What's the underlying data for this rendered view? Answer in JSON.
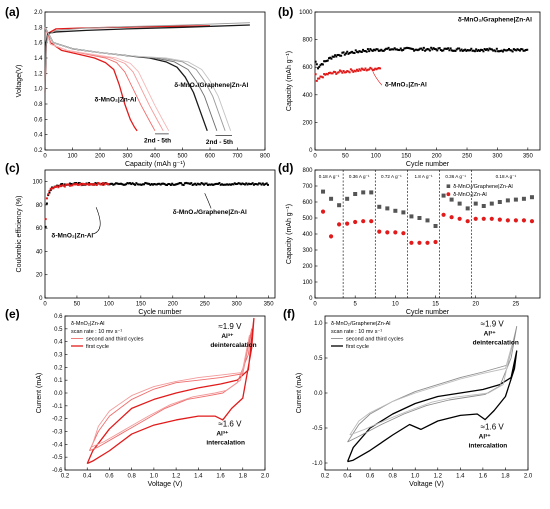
{
  "chart_data": [
    {
      "id": "a",
      "panel_label": "(a)",
      "type": "line",
      "xlabel": "Capacity (mAh g⁻¹)",
      "ylabel": "Voltage(V)",
      "xlim": [
        0,
        800
      ],
      "ylim": [
        0.2,
        2.0
      ],
      "xticks": [
        0,
        100,
        200,
        300,
        400,
        500,
        600,
        700,
        800
      ],
      "yticks": [
        0.2,
        0.4,
        0.6,
        0.8,
        1.0,
        1.2,
        1.4,
        1.6,
        1.8,
        2.0
      ],
      "series": [
        {
          "group": "MnO2",
          "role": "charge",
          "color": "#e11b1b",
          "x": [
            0,
            4,
            10,
            40,
            120,
            250,
            400,
            600
          ],
          "y": [
            0.95,
            1.55,
            1.72,
            1.78,
            1.79,
            1.8,
            1.81,
            1.82
          ]
        },
        {
          "group": "MnO2",
          "role": "discharge-1",
          "color": "#e11b1b",
          "x": [
            0,
            20,
            60,
            120,
            180,
            220,
            250,
            270,
            290,
            310,
            325,
            335
          ],
          "y": [
            1.8,
            1.6,
            1.5,
            1.45,
            1.4,
            1.34,
            1.25,
            1.05,
            0.8,
            0.6,
            0.5,
            0.45
          ]
        },
        {
          "group": "MnO2",
          "role": "discharge-2",
          "color": "#ef6d6d",
          "x": [
            0,
            20,
            80,
            150,
            220,
            260,
            290,
            320,
            350,
            380,
            400
          ],
          "y": [
            1.8,
            1.58,
            1.5,
            1.45,
            1.4,
            1.34,
            1.22,
            1.0,
            0.78,
            0.58,
            0.45
          ]
        },
        {
          "group": "MnO2",
          "role": "discharge-3",
          "color": "#f39a9a",
          "x": [
            0,
            20,
            80,
            160,
            240,
            290,
            320,
            350,
            380,
            410,
            430
          ],
          "y": [
            1.8,
            1.58,
            1.5,
            1.45,
            1.4,
            1.33,
            1.22,
            1.0,
            0.78,
            0.58,
            0.45
          ]
        },
        {
          "group": "MnO2",
          "role": "discharge-4",
          "color": "#f6b8b8",
          "x": [
            0,
            20,
            80,
            170,
            260,
            310,
            340,
            370,
            400,
            430,
            450
          ],
          "y": [
            1.8,
            1.58,
            1.5,
            1.45,
            1.4,
            1.33,
            1.22,
            1.0,
            0.78,
            0.58,
            0.45
          ]
        },
        {
          "group": "MnO2/Graphene",
          "role": "charge",
          "color": "#1a1a1a",
          "x": [
            0,
            4,
            10,
            40,
            150,
            300,
            500,
            745
          ],
          "y": [
            0.95,
            1.6,
            1.72,
            1.74,
            1.76,
            1.78,
            1.8,
            1.83
          ]
        },
        {
          "group": "MnO2/Graphene",
          "role": "charge-gray",
          "color": "#9a9a9a",
          "x": [
            0,
            4,
            10,
            40,
            150,
            300,
            500,
            745
          ],
          "y": [
            0.95,
            1.55,
            1.7,
            1.76,
            1.79,
            1.81,
            1.83,
            1.86
          ]
        },
        {
          "group": "MnO2/Graphene",
          "role": "discharge-1",
          "color": "#1a1a1a",
          "x": [
            0,
            30,
            100,
            200,
            300,
            380,
            440,
            480,
            510,
            540,
            560,
            580,
            590
          ],
          "y": [
            1.8,
            1.6,
            1.52,
            1.47,
            1.43,
            1.4,
            1.35,
            1.28,
            1.15,
            0.95,
            0.75,
            0.55,
            0.45
          ]
        },
        {
          "group": "MnO2/Graphene",
          "role": "discharge-2",
          "color": "#6f6f6f",
          "x": [
            0,
            30,
            100,
            200,
            300,
            400,
            470,
            520,
            550,
            580,
            600,
            615,
            625
          ],
          "y": [
            1.8,
            1.6,
            1.52,
            1.47,
            1.43,
            1.4,
            1.35,
            1.25,
            1.1,
            0.9,
            0.7,
            0.55,
            0.45
          ]
        },
        {
          "group": "MnO2/Graphene",
          "role": "discharge-3",
          "color": "#9a9a9a",
          "x": [
            0,
            30,
            100,
            200,
            300,
            420,
            500,
            550,
            580,
            610,
            630,
            645,
            655
          ],
          "y": [
            1.8,
            1.6,
            1.52,
            1.47,
            1.43,
            1.4,
            1.35,
            1.25,
            1.1,
            0.9,
            0.7,
            0.55,
            0.45
          ]
        },
        {
          "group": "MnO2/Graphene",
          "role": "discharge-4",
          "color": "#c4c4c4",
          "x": [
            0,
            30,
            100,
            200,
            300,
            440,
            520,
            570,
            600,
            630,
            650,
            665,
            675
          ],
          "y": [
            1.8,
            1.6,
            1.52,
            1.47,
            1.43,
            1.4,
            1.35,
            1.25,
            1.1,
            0.9,
            0.7,
            0.55,
            0.45
          ]
        }
      ],
      "annotations": [
        "δ-MnO₂/Graphene|Zn-Al",
        "δ-MnO₂|Zn-Al",
        "2nd - 5th",
        "2nd - 5th"
      ]
    },
    {
      "id": "b",
      "panel_label": "(b)",
      "type": "scatter",
      "xlabel": "Cycle number",
      "ylabel": "Capacity (mAh g⁻¹)",
      "xlim": [
        0,
        370
      ],
      "ylim": [
        0,
        1000
      ],
      "xticks": [
        0,
        50,
        100,
        150,
        200,
        250,
        300,
        350
      ],
      "yticks": [
        0,
        200,
        400,
        600,
        800,
        1000
      ],
      "series": [
        {
          "name": "δ-MnO₂/Graphene|Zn-Al",
          "color": "#000000",
          "trend_x": [
            1,
            5,
            10,
            20,
            30,
            50,
            80,
            120,
            200,
            300,
            350
          ],
          "trend_y": [
            640,
            600,
            620,
            650,
            680,
            700,
            720,
            730,
            730,
            725,
            720
          ]
        },
        {
          "name": "δ-MnO₂|Zn-Al",
          "color": "#e11b1b",
          "trend_x": [
            1,
            3,
            6,
            10,
            20,
            40,
            60,
            80,
            100,
            107
          ],
          "trend_y": [
            540,
            500,
            510,
            530,
            550,
            565,
            575,
            582,
            590,
            595
          ]
        }
      ]
    },
    {
      "id": "c",
      "panel_label": "(c)",
      "type": "scatter",
      "xlabel": "Cycle number",
      "ylabel": "Coulombic efficiency (%)",
      "xlim": [
        0,
        360
      ],
      "ylim": [
        0,
        110
      ],
      "xticks": [
        0,
        50,
        100,
        150,
        200,
        250,
        300,
        350
      ],
      "yticks": [
        0,
        20,
        40,
        60,
        80,
        100
      ],
      "series": [
        {
          "name": "δ-MnO₂/Graphene|Zn-Al",
          "color": "#000000",
          "trend_x": [
            1,
            2,
            3,
            5,
            8,
            12,
            20,
            40,
            80,
            150,
            250,
            350
          ],
          "trend_y": [
            62,
            75,
            82,
            88,
            92,
            95,
            97,
            98,
            98,
            98,
            98,
            98
          ]
        },
        {
          "name": "δ-MnO₂|Zn-Al",
          "color": "#e11b1b",
          "trend_x": [
            1,
            2,
            3,
            5,
            8,
            12,
            20,
            40,
            70,
            100
          ],
          "trend_y": [
            68,
            80,
            86,
            90,
            93,
            95,
            96,
            97,
            98,
            98
          ]
        }
      ]
    },
    {
      "id": "d",
      "panel_label": "(d)",
      "type": "scatter",
      "xlabel": "Cycle number",
      "ylabel": "Capacity (mAh g⁻¹)",
      "xlim": [
        0,
        28
      ],
      "ylim": [
        0,
        800
      ],
      "xticks": [
        0,
        5,
        10,
        15,
        20,
        25
      ],
      "yticks": [
        0,
        100,
        200,
        300,
        400,
        500,
        600,
        700,
        800
      ],
      "rate_labels": [
        "0.18 A g⁻¹",
        "0.36 A g⁻¹",
        "0.72 A g⁻¹",
        "1.8 A g⁻¹",
        "0.36 A g⁻¹",
        "0.18 A g⁻¹"
      ],
      "rate_dividers": [
        3.5,
        7.5,
        11.5,
        15.5,
        19.5
      ],
      "series": [
        {
          "name": "δ-MnO₂/Graphene|Zn-Al",
          "color": "#555555",
          "marker": "square",
          "x": [
            1,
            2,
            3,
            4,
            5,
            6,
            7,
            8,
            9,
            10,
            11,
            12,
            13,
            14,
            15,
            16,
            17,
            18,
            19,
            20,
            21,
            22,
            23,
            24,
            25,
            26,
            27
          ],
          "values": [
            665,
            620,
            580,
            620,
            650,
            660,
            660,
            570,
            560,
            545,
            535,
            510,
            500,
            485,
            450,
            640,
            615,
            590,
            560,
            590,
            575,
            590,
            600,
            610,
            615,
            620,
            630
          ]
        },
        {
          "name": "δ-MnO₂|Zn-Al",
          "color": "#e11b1b",
          "marker": "circle",
          "x": [
            1,
            2,
            3,
            4,
            5,
            6,
            7,
            8,
            9,
            10,
            11,
            12,
            13,
            14,
            15,
            16,
            17,
            18,
            19,
            20,
            21,
            22,
            23,
            24,
            25,
            26,
            27
          ],
          "values": [
            540,
            385,
            460,
            465,
            475,
            480,
            480,
            415,
            410,
            410,
            405,
            345,
            345,
            345,
            350,
            520,
            505,
            495,
            480,
            495,
            495,
            495,
            490,
            485,
            485,
            485,
            480
          ]
        }
      ]
    },
    {
      "id": "e",
      "panel_label": "(e)",
      "type": "line",
      "xlabel": "Voltage (V)",
      "ylabel": "Current (mA)",
      "xlim": [
        0.2,
        2.0
      ],
      "ylim": [
        -0.6,
        0.6
      ],
      "xticks": [
        0.2,
        0.4,
        0.6,
        0.8,
        1.0,
        1.2,
        1.4,
        1.6,
        1.8,
        2.0
      ],
      "yticks": [
        -0.6,
        -0.5,
        -0.4,
        -0.3,
        -0.2,
        -0.1,
        0.0,
        0.1,
        0.2,
        0.3,
        0.4,
        0.5,
        0.6
      ],
      "title_text": "δ-MnO₂|Zn-Al",
      "scan_rate_text": "scan rate : 10 mv s⁻¹",
      "legend": [
        "second  and third cycles",
        "first cycle"
      ],
      "series": [
        {
          "role": "first-cycle",
          "color": "#e11b1b",
          "x": [
            0.4,
            0.45,
            0.6,
            0.8,
            1.0,
            1.2,
            1.4,
            1.55,
            1.62,
            1.7,
            1.8,
            1.88,
            1.9,
            1.85,
            1.75,
            1.6,
            1.4,
            1.2,
            1.0,
            0.8,
            0.6,
            0.45,
            0.4
          ],
          "y": [
            -0.55,
            -0.53,
            -0.45,
            -0.32,
            -0.25,
            -0.21,
            -0.18,
            -0.18,
            -0.21,
            -0.12,
            -0.04,
            0.35,
            0.58,
            0.18,
            0.1,
            0.07,
            0.04,
            0.0,
            -0.05,
            -0.12,
            -0.28,
            -0.45,
            -0.55
          ]
        },
        {
          "role": "cycle-2",
          "color": "#ef6d6d",
          "x": [
            0.42,
            0.5,
            0.7,
            0.9,
            1.1,
            1.3,
            1.5,
            1.62,
            1.75,
            1.85,
            1.88,
            1.8,
            1.6,
            1.4,
            1.2,
            1.0,
            0.8,
            0.6,
            0.5,
            0.42
          ],
          "y": [
            -0.45,
            -0.42,
            -0.32,
            -0.22,
            -0.12,
            -0.05,
            -0.02,
            0.0,
            0.08,
            0.3,
            0.5,
            0.15,
            0.12,
            0.1,
            0.08,
            0.03,
            -0.05,
            -0.18,
            -0.3,
            -0.45
          ]
        },
        {
          "role": "cycle-3",
          "color": "#f39a9a",
          "x": [
            0.44,
            0.55,
            0.75,
            0.95,
            1.15,
            1.35,
            1.55,
            1.65,
            1.78,
            1.86,
            1.8,
            1.6,
            1.4,
            1.2,
            1.0,
            0.8,
            0.6,
            0.5,
            0.44
          ],
          "y": [
            -0.42,
            -0.38,
            -0.28,
            -0.18,
            -0.09,
            -0.03,
            -0.0,
            0.02,
            0.1,
            0.45,
            0.16,
            0.14,
            0.12,
            0.09,
            0.05,
            -0.02,
            -0.14,
            -0.26,
            -0.42
          ]
        }
      ],
      "annotations": [
        "≈1.9 V",
        "Al³⁺",
        "deintercalation",
        "≈1.6 V",
        "Al³⁺",
        "intercalation"
      ]
    },
    {
      "id": "f",
      "panel_label": "(f)",
      "type": "line",
      "xlabel": "Voltage (V)",
      "ylabel": "Current (mA)",
      "xlim": [
        0.2,
        2.0
      ],
      "ylim": [
        -1.1,
        1.1
      ],
      "xticks": [
        0.2,
        0.4,
        0.6,
        0.8,
        1.0,
        1.2,
        1.4,
        1.6,
        1.8,
        2.0
      ],
      "yticks": [
        -1.0,
        -0.5,
        0.0,
        0.5,
        1.0
      ],
      "title_text": "δ-MnO₂/Graphene|Zn-Al",
      "scan_rate_text": "scan rate : 10 mv s⁻¹",
      "legend": [
        "second and third cycles",
        "first cycle"
      ],
      "series": [
        {
          "role": "first-cycle",
          "color": "#000000",
          "x": [
            0.4,
            0.45,
            0.6,
            0.8,
            0.95,
            1.05,
            1.2,
            1.4,
            1.55,
            1.62,
            1.7,
            1.8,
            1.88,
            1.9,
            1.85,
            1.75,
            1.6,
            1.4,
            1.2,
            1.0,
            0.8,
            0.6,
            0.45,
            0.4
          ],
          "y": [
            -0.98,
            -0.96,
            -0.82,
            -0.6,
            -0.45,
            -0.52,
            -0.4,
            -0.32,
            -0.3,
            -0.38,
            -0.25,
            -0.05,
            0.35,
            0.6,
            0.22,
            0.12,
            0.05,
            0.0,
            -0.05,
            -0.15,
            -0.3,
            -0.5,
            -0.78,
            -0.98
          ]
        },
        {
          "role": "cycle-2",
          "color": "#8e8e8e",
          "x": [
            0.4,
            0.5,
            0.7,
            0.9,
            1.1,
            1.3,
            1.5,
            1.62,
            1.75,
            1.85,
            1.9,
            1.82,
            1.6,
            1.4,
            1.2,
            1.0,
            0.8,
            0.6,
            0.5,
            0.4
          ],
          "y": [
            -0.7,
            -0.62,
            -0.45,
            -0.3,
            -0.18,
            -0.1,
            -0.05,
            -0.02,
            0.1,
            0.5,
            0.95,
            0.4,
            0.3,
            0.22,
            0.12,
            0.02,
            -0.12,
            -0.3,
            -0.45,
            -0.7
          ]
        },
        {
          "role": "cycle-3",
          "color": "#bdbdbd",
          "x": [
            0.42,
            0.55,
            0.75,
            0.95,
            1.15,
            1.35,
            1.55,
            1.65,
            1.78,
            1.86,
            1.8,
            1.6,
            1.4,
            1.2,
            1.0,
            0.8,
            0.6,
            0.5,
            0.42
          ],
          "y": [
            -0.6,
            -0.52,
            -0.38,
            -0.25,
            -0.13,
            -0.06,
            -0.02,
            0.0,
            0.12,
            0.7,
            0.35,
            0.28,
            0.2,
            0.1,
            0.0,
            -0.12,
            -0.28,
            -0.4,
            -0.6
          ]
        }
      ],
      "annotations": [
        "≈1.9 V",
        "Al³⁺",
        "deintercalation",
        "≈1.6 V",
        "Al³⁺",
        "intercalation"
      ]
    }
  ]
}
